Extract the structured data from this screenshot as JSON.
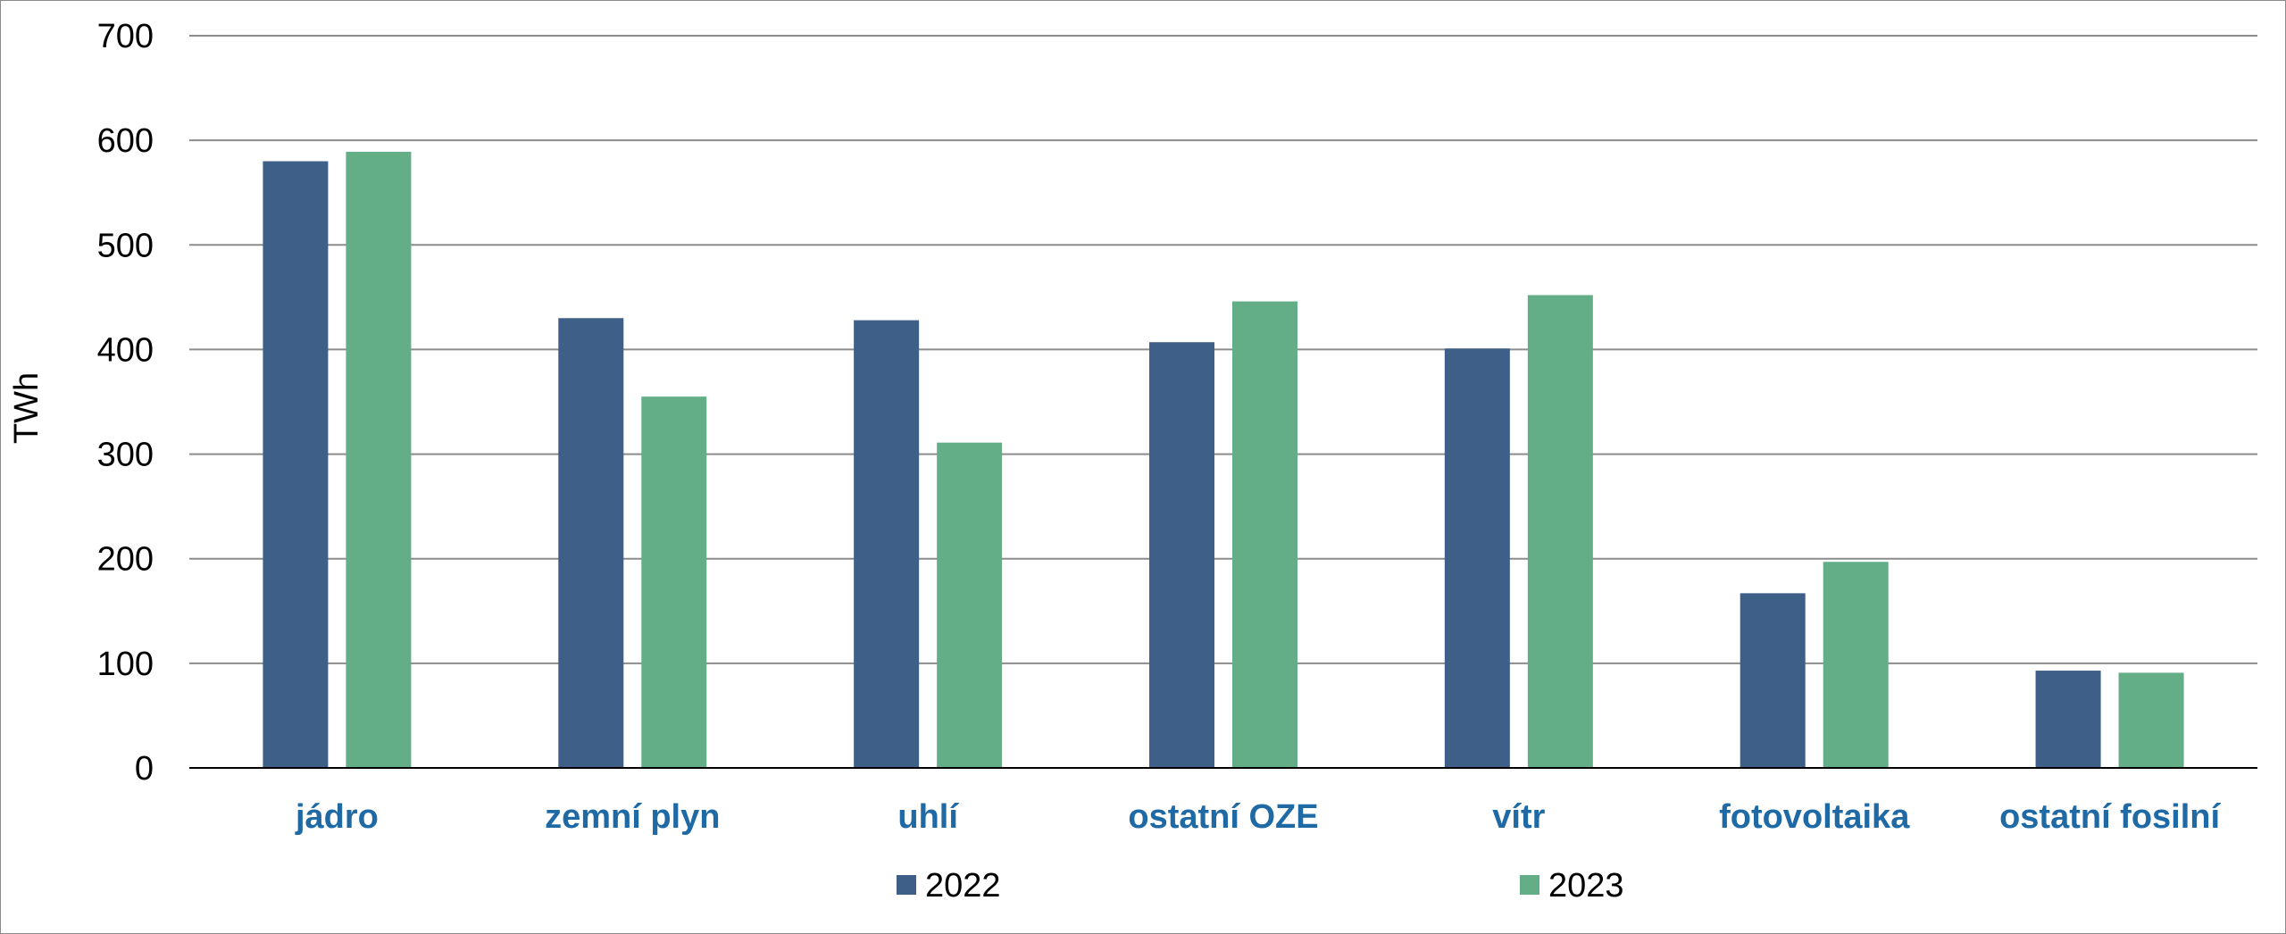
{
  "chart_data": {
    "type": "bar",
    "categories": [
      "jádro",
      "zemní plyn",
      "uhlí",
      "ostatní OZE",
      "vítr",
      "fotovoltaika",
      "ostatní fosilní"
    ],
    "series": [
      {
        "name": "2022",
        "values": [
          580,
          430,
          428,
          407,
          401,
          167,
          93
        ],
        "color": "#3e5f87"
      },
      {
        "name": "2023",
        "values": [
          589,
          355,
          311,
          446,
          452,
          197,
          91
        ],
        "color": "#63ae86"
      }
    ],
    "ylabel": "TWh",
    "xlabel": "",
    "title": "",
    "ylim": [
      0,
      700
    ],
    "yticks": [
      0,
      100,
      200,
      300,
      400,
      500,
      600,
      700
    ],
    "grid": true,
    "legend_position": "bottom",
    "category_label_color": "#1f6aa5",
    "grid_color": "#8c8c8c"
  }
}
